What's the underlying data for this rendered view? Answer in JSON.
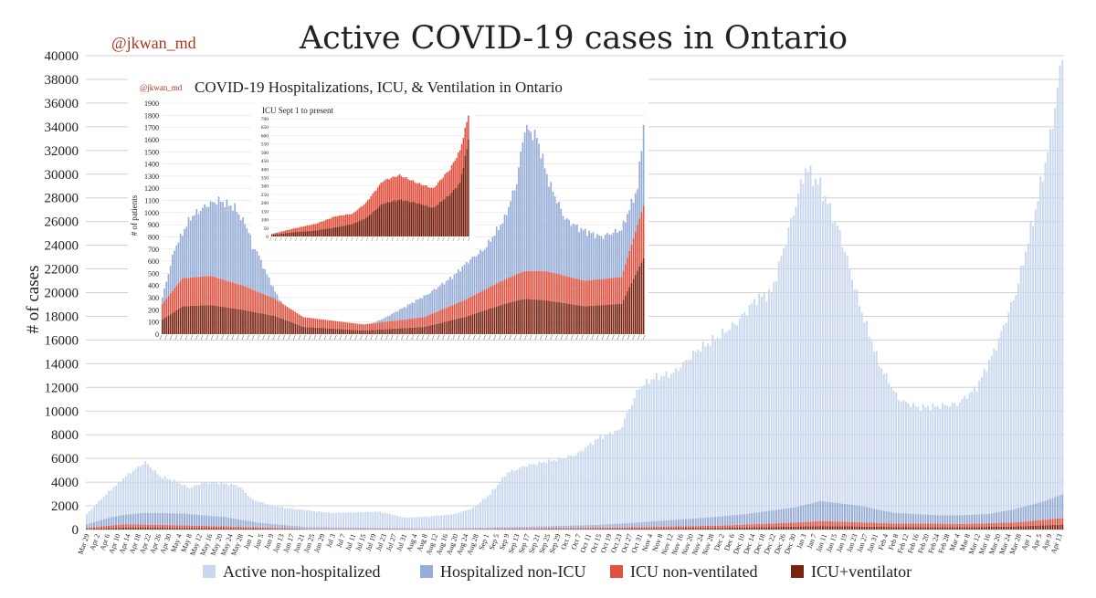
{
  "colors": {
    "active": "#c9d8ef",
    "hosp": "#95acd6",
    "icu_nv": "#e0513f",
    "icu_vent": "#7a2312",
    "handle": "#b0341c",
    "grid": "#d0d0d0",
    "text": "#222222"
  },
  "chart_data": [
    {
      "type": "bar",
      "title": "Active COVID-19 cases in Ontario",
      "handle": "@jkwan_md",
      "ylabel": "# of cases",
      "ylim": [
        0,
        40000
      ],
      "yticks": [
        0,
        2000,
        4000,
        6000,
        8000,
        10000,
        12000,
        14000,
        16000,
        18000,
        20000,
        22000,
        24000,
        26000,
        28000,
        30000,
        32000,
        34000,
        36000,
        38000,
        40000
      ],
      "xticks": [
        "Mar 29",
        "Apr 2",
        "Apr 6",
        "Apr 10",
        "Apr 14",
        "Apr 18",
        "Apr 22",
        "Apr 26",
        "Apr 30",
        "May 4",
        "May 8",
        "May 12",
        "May 16",
        "May 20",
        "May 24",
        "May 28",
        "Jun 1",
        "Jun 5",
        "Jun 9",
        "Jun 13",
        "Jun 17",
        "Jun 21",
        "Jun 25",
        "Jun 29",
        "Jul 3",
        "Jul 7",
        "Jul 11",
        "Jul 15",
        "Jul 19",
        "Jul 23",
        "Jul 27",
        "Jul 31",
        "Aug 4",
        "Aug 8",
        "Aug 12",
        "Aug 16",
        "Aug 20",
        "Aug 24",
        "Aug 28",
        "Sep 1",
        "Sep 5",
        "Sep 9",
        "Sep 13",
        "Sep 17",
        "Sep 21",
        "Sep 25",
        "Sep 29",
        "Oct 3",
        "Oct 7",
        "Oct 11",
        "Oct 15",
        "Oct 19",
        "Oct 23",
        "Oct 27",
        "Oct 31",
        "Nov 4",
        "Nov 8",
        "Nov 12",
        "Nov 16",
        "Nov 20",
        "Nov 24",
        "Nov 28",
        "Dec 2",
        "Dec 6",
        "Dec 10",
        "Dec 14",
        "Dec 18",
        "Dec 22",
        "Dec 26",
        "Dec 30",
        "Jan 3",
        "Jan 7",
        "Jan 11",
        "Jan 15",
        "Jan 19",
        "Jan 23",
        "Jan 27",
        "Jan 31",
        "Feb 4",
        "Feb 8",
        "Feb 12",
        "Feb 16",
        "Feb 20",
        "Feb 24",
        "Feb 28",
        "Mar 4",
        "Mar 8",
        "Mar 12",
        "Mar 16",
        "Mar 20",
        "Mar 24",
        "Mar 28",
        "Apr 1",
        "Apr 5",
        "Apr 9",
        "Apr 13"
      ],
      "series": [
        {
          "name": "Active non-hospitalized",
          "total_curve": [
            [
              0,
              1300
            ],
            [
              8,
              3000
            ],
            [
              16,
              4500
            ],
            [
              24,
              5700
            ],
            [
              30,
              4500
            ],
            [
              36,
              4100
            ],
            [
              42,
              3500
            ],
            [
              48,
              4000
            ],
            [
              56,
              3900
            ],
            [
              62,
              3700
            ],
            [
              68,
              2500
            ],
            [
              76,
              2000
            ],
            [
              86,
              1700
            ],
            [
              100,
              1400
            ],
            [
              120,
              1500
            ],
            [
              130,
              1000
            ],
            [
              140,
              1100
            ],
            [
              150,
              1300
            ],
            [
              158,
              1800
            ],
            [
              165,
              3000
            ],
            [
              172,
              4800
            ],
            [
              180,
              5400
            ],
            [
              190,
              5800
            ],
            [
              200,
              6300
            ],
            [
              210,
              7800
            ],
            [
              218,
              8400
            ],
            [
              226,
              12000
            ],
            [
              232,
              12800
            ],
            [
              240,
              13200
            ],
            [
              250,
              15200
            ],
            [
              258,
              16200
            ],
            [
              266,
              17500
            ],
            [
              274,
              19500
            ],
            [
              280,
              20000
            ],
            [
              288,
              26000
            ],
            [
              294,
              30500
            ],
            [
              300,
              29000
            ],
            [
              308,
              25000
            ],
            [
              316,
              19000
            ],
            [
              324,
              14000
            ],
            [
              332,
              11000
            ],
            [
              340,
              10300
            ],
            [
              348,
              10400
            ],
            [
              356,
              10600
            ],
            [
              364,
              12000
            ],
            [
              372,
              15500
            ],
            [
              380,
              20000
            ],
            [
              388,
              27000
            ],
            [
              394,
              33000
            ],
            [
              399,
              40000
            ]
          ]
        },
        {
          "name": "Hospitalized non-ICU",
          "curve": [
            [
              0,
              300
            ],
            [
              10,
              700
            ],
            [
              24,
              1000
            ],
            [
              40,
              1000
            ],
            [
              56,
              800
            ],
            [
              70,
              400
            ],
            [
              90,
              150
            ],
            [
              140,
              60
            ],
            [
              170,
              120
            ],
            [
              210,
              250
            ],
            [
              240,
              550
            ],
            [
              270,
              900
            ],
            [
              290,
              1300
            ],
            [
              300,
              1700
            ],
            [
              316,
              1400
            ],
            [
              330,
              900
            ],
            [
              350,
              700
            ],
            [
              370,
              800
            ],
            [
              390,
              1500
            ],
            [
              399,
              2000
            ]
          ]
        },
        {
          "name": "ICU non-ventilated",
          "curve": [
            [
              0,
              100
            ],
            [
              15,
              280
            ],
            [
              30,
              250
            ],
            [
              60,
              150
            ],
            [
              90,
              40
            ],
            [
              140,
              20
            ],
            [
              180,
              60
            ],
            [
              220,
              110
            ],
            [
              260,
              200
            ],
            [
              290,
              350
            ],
            [
              300,
              420
            ],
            [
              330,
              300
            ],
            [
              360,
              280
            ],
            [
              380,
              350
            ],
            [
              399,
              550
            ]
          ]
        },
        {
          "name": "ICU+ventilator",
          "curve": [
            [
              0,
              50
            ],
            [
              15,
              160
            ],
            [
              30,
              150
            ],
            [
              60,
              100
            ],
            [
              90,
              20
            ],
            [
              140,
              10
            ],
            [
              180,
              30
            ],
            [
              220,
              70
            ],
            [
              260,
              140
            ],
            [
              290,
              250
            ],
            [
              300,
              300
            ],
            [
              330,
              220
            ],
            [
              360,
              200
            ],
            [
              380,
              260
            ],
            [
              399,
              420
            ]
          ]
        }
      ],
      "bar_count": 400
    },
    {
      "type": "bar",
      "title": "COVID-19 Hospitalizations, ICU, & Ventilation in Ontario",
      "handle": "@jkwan_md",
      "ylabel": "# of patients",
      "ylim": [
        0,
        1900
      ],
      "yticks": [
        0,
        100,
        200,
        300,
        400,
        500,
        600,
        700,
        800,
        900,
        1000,
        1100,
        1200,
        1300,
        1400,
        1500,
        1600,
        1700,
        1800,
        1900
      ],
      "xtick_count": 95,
      "series": [
        {
          "name": "Hospitalized non-ICU",
          "total_curve": [
            [
              0,
              300
            ],
            [
              6,
              700
            ],
            [
              14,
              960
            ],
            [
              22,
              1060
            ],
            [
              28,
              1100
            ],
            [
              36,
              1040
            ],
            [
              42,
              880
            ],
            [
              50,
              560
            ],
            [
              56,
              350
            ],
            [
              62,
              180
            ],
            [
              70,
              120
            ],
            [
              80,
              60
            ],
            [
              90,
              70
            ],
            [
              100,
              60
            ],
            [
              110,
              130
            ],
            [
              120,
              220
            ],
            [
              132,
              330
            ],
            [
              144,
              470
            ],
            [
              152,
              600
            ],
            [
              160,
              700
            ],
            [
              170,
              950
            ],
            [
              176,
              1250
            ],
            [
              180,
              1700
            ],
            [
              186,
              1620
            ],
            [
              192,
              1250
            ],
            [
              200,
              950
            ],
            [
              208,
              860
            ],
            [
              218,
              800
            ],
            [
              228,
              860
            ],
            [
              236,
              1200
            ],
            [
              240,
              1900
            ]
          ]
        },
        {
          "name": "ICU non-ventilated",
          "curve": [
            [
              0,
              130
            ],
            [
              10,
              230
            ],
            [
              24,
              240
            ],
            [
              40,
              200
            ],
            [
              56,
              140
            ],
            [
              70,
              80
            ],
            [
              100,
              50
            ],
            [
              130,
              80
            ],
            [
              150,
              140
            ],
            [
              170,
              200
            ],
            [
              180,
              230
            ],
            [
              190,
              240
            ],
            [
              210,
              210
            ],
            [
              228,
              220
            ],
            [
              240,
              450
            ]
          ]
        },
        {
          "name": "ICU+ventilator",
          "curve": [
            [
              0,
              120
            ],
            [
              10,
              230
            ],
            [
              24,
              240
            ],
            [
              40,
              200
            ],
            [
              56,
              150
            ],
            [
              70,
              60
            ],
            [
              100,
              30
            ],
            [
              130,
              60
            ],
            [
              150,
              140
            ],
            [
              170,
              250
            ],
            [
              180,
              290
            ],
            [
              190,
              280
            ],
            [
              210,
              230
            ],
            [
              228,
              250
            ],
            [
              240,
              660
            ]
          ]
        }
      ],
      "bar_count": 240
    },
    {
      "type": "bar",
      "title": "ICU Sept 1 to present",
      "ylim": [
        0,
        700
      ],
      "yticks": [
        0,
        50,
        100,
        150,
        200,
        250,
        300,
        350,
        400,
        450,
        500,
        550,
        600,
        650,
        700
      ],
      "xtick_count": 40,
      "series": [
        {
          "name": "ICU non-ventilated",
          "curve": [
            [
              0,
              5
            ],
            [
              12,
              20
            ],
            [
              26,
              40
            ],
            [
              38,
              65
            ],
            [
              48,
              60
            ],
            [
              56,
              90
            ],
            [
              66,
              135
            ],
            [
              76,
              145
            ],
            [
              86,
              120
            ],
            [
              96,
              115
            ],
            [
              106,
              150
            ],
            [
              112,
              190
            ],
            [
              117,
              150
            ]
          ]
        },
        {
          "name": "ICU+ventilator",
          "curve": [
            [
              0,
              10
            ],
            [
              12,
              25
            ],
            [
              26,
              35
            ],
            [
              38,
              55
            ],
            [
              48,
              75
            ],
            [
              56,
              110
            ],
            [
              66,
              195
            ],
            [
              76,
              220
            ],
            [
              86,
              200
            ],
            [
              96,
              170
            ],
            [
              106,
              250
            ],
            [
              112,
              320
            ],
            [
              117,
              570
            ]
          ]
        }
      ],
      "bar_count": 118
    }
  ],
  "legend": [
    {
      "label": "Active non-hospitalized",
      "color_key": "active"
    },
    {
      "label": "Hospitalized non-ICU",
      "color_key": "hosp"
    },
    {
      "label": "ICU non-ventilated",
      "color_key": "icu_nv"
    },
    {
      "label": "ICU+ventilator",
      "color_key": "icu_vent"
    }
  ]
}
